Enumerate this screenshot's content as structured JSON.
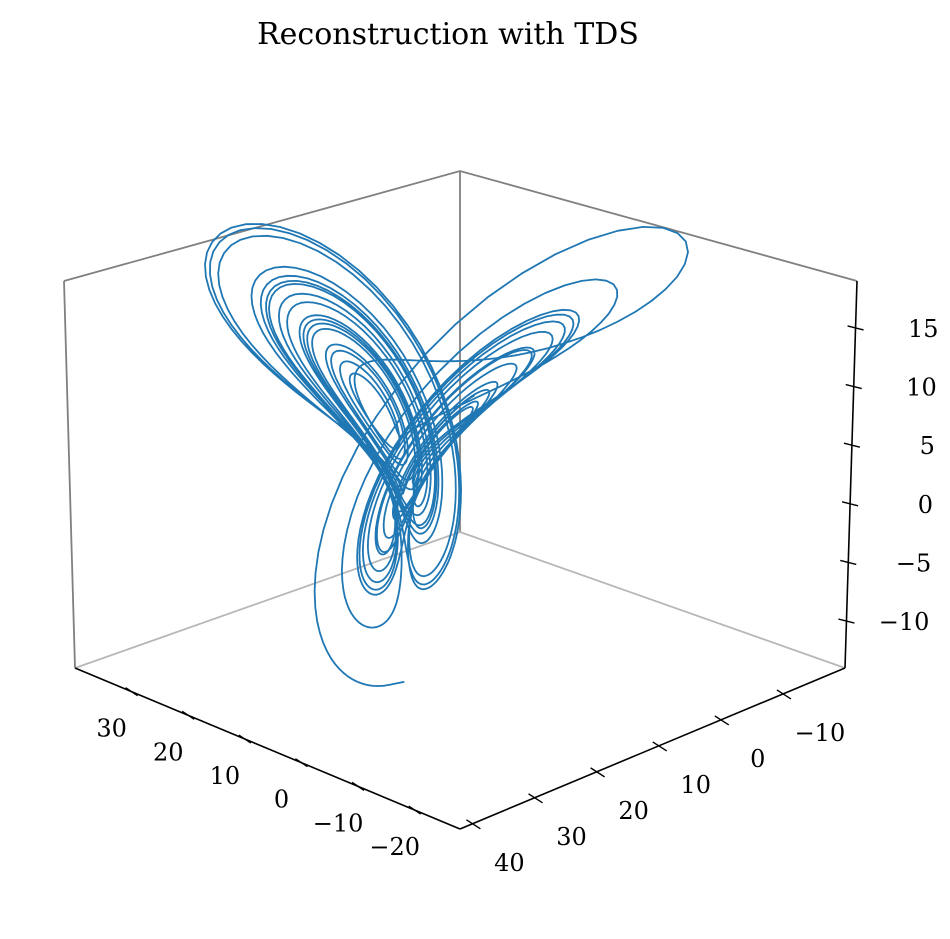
{
  "chart_data": {
    "type": "line",
    "projection": "3d",
    "title": "Reconstruction with TDS",
    "series_color": "#1f77b4",
    "axes": {
      "x": {
        "range": [
          -28,
          40
        ],
        "ticks": [
          30,
          20,
          10,
          0,
          -10,
          -20
        ]
      },
      "y": {
        "range": [
          -20,
          42
        ],
        "ticks": [
          40,
          30,
          20,
          10,
          0,
          -10
        ]
      },
      "z": {
        "range": [
          -14,
          19
        ],
        "ticks": [
          15,
          10,
          5,
          0,
          -5,
          -10
        ]
      }
    },
    "grid": false,
    "legend": "none"
  }
}
